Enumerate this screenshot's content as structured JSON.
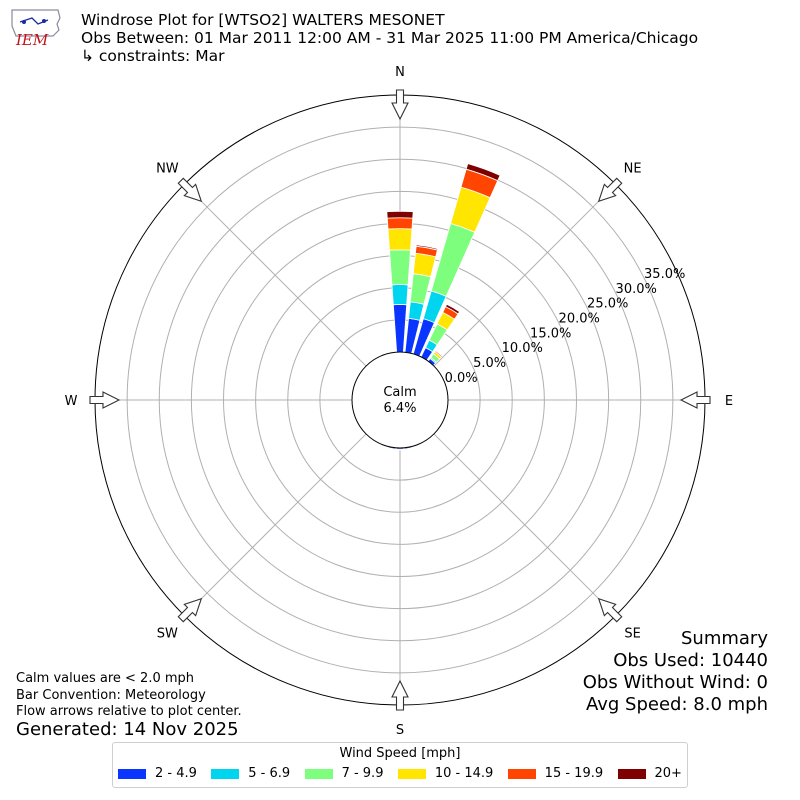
{
  "header": {
    "title": "Windrose Plot for [WTSO2] WALTERS MESONET",
    "subtitle": "Obs Between: 01 Mar 2011 12:00 AM - 31 Mar 2025 11:00 PM America/Chicago",
    "constraints": "↳ constraints: Mar"
  },
  "logo": {
    "text": "IEM"
  },
  "notes": {
    "calm_def": "Calm values are < 2.0 mph",
    "bar_convention": "Bar Convention: Meteorology",
    "flow_arrows": "Flow arrows relative to plot center.",
    "generated": "Generated: 14 Nov 2025"
  },
  "summary": {
    "title": "Summary",
    "obs_used": "Obs Used: 10440",
    "obs_without_wind": "Obs Without Wind: 0",
    "avg_speed": "Avg Speed: 8.0 mph"
  },
  "chart_data": {
    "type": "windrose",
    "calm_label": "Calm",
    "calm_value": "6.4%",
    "calm_percent": 6.4,
    "rmax": 40,
    "rings": [
      0,
      5,
      10,
      15,
      20,
      25,
      30,
      35
    ],
    "ring_labels": [
      "0.0%",
      "5.0%",
      "10.0%",
      "15.0%",
      "20.0%",
      "25.0%",
      "30.0%",
      "35.0%"
    ],
    "directions": [
      {
        "label": "N",
        "angle": 0
      },
      {
        "label": "NE",
        "angle": 45
      },
      {
        "label": "E",
        "angle": 90
      },
      {
        "label": "SE",
        "angle": 135
      },
      {
        "label": "S",
        "angle": 180
      },
      {
        "label": "SW",
        "angle": 225
      },
      {
        "label": "W",
        "angle": 270
      },
      {
        "label": "NW",
        "angle": 315
      }
    ],
    "legend_title": "Wind Speed [mph]",
    "speed_bins": [
      {
        "label": "2 - 4.9",
        "color": "#0a35ff"
      },
      {
        "label": "5 - 6.9",
        "color": "#00d5f0"
      },
      {
        "label": "7 - 9.9",
        "color": "#7dff7d"
      },
      {
        "label": "10 - 14.9",
        "color": "#ffe500"
      },
      {
        "label": "15 - 19.9",
        "color": "#ff4500"
      },
      {
        "label": "20+",
        "color": "#7f0000"
      }
    ],
    "sectors": [
      {
        "angle": 0,
        "values": [
          7.4,
          3.1,
          5.4,
          3.3,
          1.7,
          1.0
        ]
      },
      {
        "angle": 10,
        "values": [
          5.3,
          2.6,
          4.4,
          3.2,
          1.1,
          0.2
        ]
      },
      {
        "angle": 20,
        "values": [
          5.7,
          4.5,
          10.9,
          5.9,
          2.9,
          0.9
        ]
      },
      {
        "angle": 30,
        "values": [
          1.6,
          1.3,
          2.8,
          2.0,
          1.0,
          0.4
        ]
      },
      {
        "angle": 40,
        "values": [
          0.5,
          0.2,
          0.7,
          0.4,
          0.2,
          0.1
        ]
      },
      {
        "angle": 170,
        "values": [
          0.2,
          0.1,
          0.0,
          0.0,
          0.0,
          0.0
        ]
      },
      {
        "angle": 180,
        "values": [
          0.2,
          0.1,
          0.0,
          0.0,
          0.0,
          0.0
        ]
      },
      {
        "angle": 190,
        "values": [
          0.2,
          0.1,
          0.0,
          0.0,
          0.0,
          0.0
        ]
      }
    ]
  }
}
